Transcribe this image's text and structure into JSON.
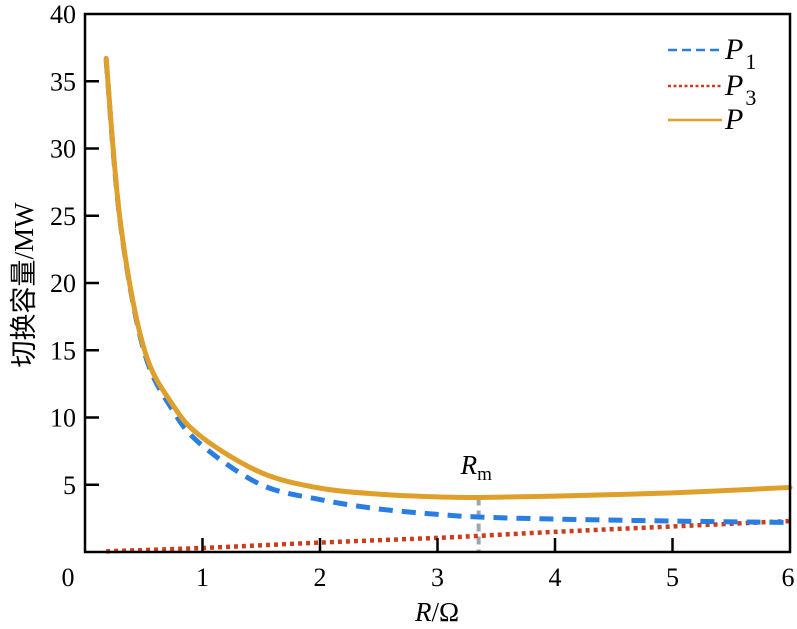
{
  "chart_data": {
    "type": "line",
    "title": "",
    "xlabel": "R/Ω",
    "xlabel_italic": "R",
    "xlabel_unit": "/Ω",
    "ylabel": "切换容量/MW",
    "xlim": [
      0,
      6
    ],
    "ylim": [
      0,
      40
    ],
    "xticks": [
      "0",
      "1",
      "2",
      "3",
      "4",
      "5",
      "6"
    ],
    "yticks": [
      "5",
      "10",
      "15",
      "20",
      "25",
      "30",
      "35",
      "40"
    ],
    "grid": false,
    "legend_position": "upper right",
    "annotation": {
      "text": "R",
      "subscript": "m",
      "x": 3.35
    },
    "series": [
      {
        "name": "P1",
        "style": "dashed",
        "color": "#2a7de1",
        "x": [
          0.18,
          0.3,
          0.5,
          0.75,
          1,
          1.5,
          2,
          2.5,
          3,
          3.35,
          4,
          5,
          6
        ],
        "values": [
          36.6,
          24.5,
          15.0,
          10.5,
          7.9,
          5.0,
          3.9,
          3.2,
          2.8,
          2.6,
          2.45,
          2.3,
          2.2
        ]
      },
      {
        "name": "P3",
        "style": "dotted",
        "color": "#cc3d1c",
        "x": [
          0.18,
          1,
          2,
          3,
          3.35,
          4,
          5,
          6
        ],
        "values": [
          0.05,
          0.3,
          0.7,
          1.05,
          1.2,
          1.5,
          1.9,
          2.3
        ]
      },
      {
        "name": "P",
        "style": "solid",
        "color": "#dea02a",
        "x": [
          0.18,
          0.3,
          0.5,
          0.75,
          1,
          1.5,
          2,
          2.5,
          3,
          3.35,
          4,
          5,
          6
        ],
        "values": [
          36.7,
          24.6,
          15.2,
          10.9,
          8.5,
          5.9,
          4.75,
          4.3,
          4.1,
          4.05,
          4.15,
          4.4,
          4.8
        ]
      }
    ]
  },
  "legend": [
    {
      "main": "P",
      "sub": "1"
    },
    {
      "main": "P",
      "sub": "3"
    },
    {
      "main": "P",
      "sub": ""
    }
  ]
}
